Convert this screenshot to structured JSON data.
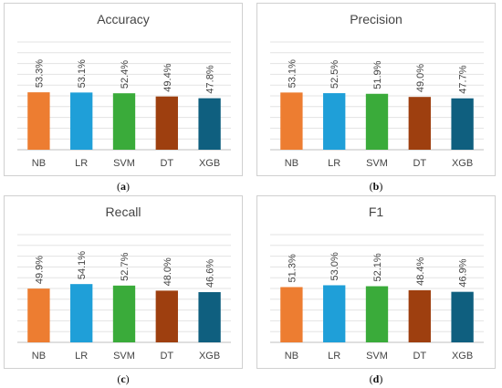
{
  "colors": {
    "NB": "#ed7d31",
    "LR": "#1f9fd8",
    "SVM": "#3aab3a",
    "DT": "#9e3f0f",
    "XGB": "#0f5f7f",
    "grid": "#e3e3e3",
    "axis": "#bfbfbf",
    "text": "#444444"
  },
  "chart_data": [
    {
      "type": "bar",
      "title": "Accuracy",
      "panel_label": "a",
      "categories": [
        "NB",
        "LR",
        "SVM",
        "DT",
        "XGB"
      ],
      "values": [
        53.3,
        53.1,
        52.4,
        49.4,
        47.8
      ],
      "data_labels": [
        "53.3%",
        "53.1%",
        "52.4%",
        "49.4%",
        "47.8%"
      ],
      "ylim": [
        0,
        100
      ],
      "grid": true
    },
    {
      "type": "bar",
      "title": "Precision",
      "panel_label": "b",
      "categories": [
        "NB",
        "LR",
        "SVM",
        "DT",
        "XGB"
      ],
      "values": [
        53.1,
        52.5,
        51.9,
        49.0,
        47.7
      ],
      "data_labels": [
        "53.1%",
        "52.5%",
        "51.9%",
        "49.0%",
        "47.7%"
      ],
      "ylim": [
        0,
        100
      ],
      "grid": true
    },
    {
      "type": "bar",
      "title": "Recall",
      "panel_label": "c",
      "categories": [
        "NB",
        "LR",
        "SVM",
        "DT",
        "XGB"
      ],
      "values": [
        49.9,
        54.1,
        52.7,
        48.0,
        46.6
      ],
      "data_labels": [
        "49.9%",
        "54.1%",
        "52.7%",
        "48.0%",
        "46.6%"
      ],
      "ylim": [
        0,
        100
      ],
      "grid": true
    },
    {
      "type": "bar",
      "title": "F1",
      "panel_label": "d",
      "categories": [
        "NB",
        "LR",
        "SVM",
        "DT",
        "XGB"
      ],
      "values": [
        51.3,
        53.0,
        52.1,
        48.4,
        46.9
      ],
      "data_labels": [
        "51.3%",
        "53.0%",
        "52.1%",
        "48.4%",
        "46.9%"
      ],
      "ylim": [
        0,
        100
      ],
      "grid": true
    }
  ]
}
